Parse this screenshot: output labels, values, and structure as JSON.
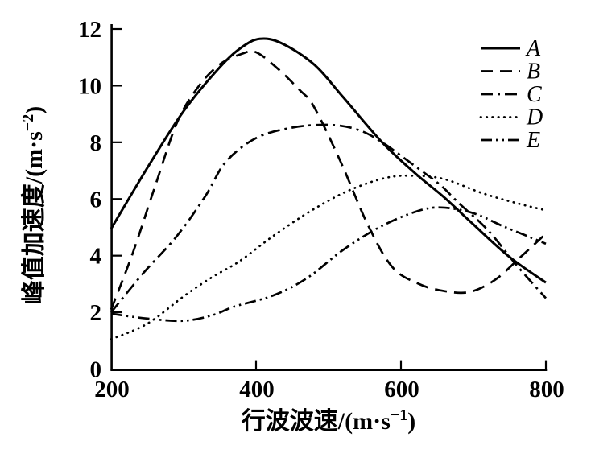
{
  "figure": {
    "background": "#ffffff",
    "line_color": "#000000"
  },
  "chart_data": {
    "type": "line",
    "title": "",
    "xlabel": {
      "main": "行波波速/(m·s",
      "sup": "−1",
      "close": ")"
    },
    "ylabel": {
      "main": "峰值加速度/(m·s",
      "sup": "−2",
      "close": ")"
    },
    "xlim": [
      200,
      800
    ],
    "ylim": [
      0,
      12
    ],
    "x_ticks": [
      200,
      400,
      600,
      800
    ],
    "y_ticks": [
      0,
      2,
      4,
      6,
      8,
      10,
      12
    ],
    "grid": false,
    "legend_position": "top-right",
    "series": [
      {
        "name": "A",
        "style": "solid",
        "points": [
          [
            200,
            4.95
          ],
          [
            250,
            7.1
          ],
          [
            300,
            9.1
          ],
          [
            350,
            10.65
          ],
          [
            380,
            11.35
          ],
          [
            405,
            11.65
          ],
          [
            435,
            11.5
          ],
          [
            480,
            10.75
          ],
          [
            520,
            9.6
          ],
          [
            574,
            8.0
          ],
          [
            620,
            6.9
          ],
          [
            660,
            6.05
          ],
          [
            700,
            5.1
          ],
          [
            750,
            3.95
          ],
          [
            800,
            3.05
          ]
        ]
      },
      {
        "name": "B",
        "style": "dashed",
        "points": [
          [
            200,
            2.1
          ],
          [
            230,
            4.1
          ],
          [
            260,
            6.4
          ],
          [
            291,
            8.7
          ],
          [
            320,
            9.95
          ],
          [
            350,
            10.75
          ],
          [
            380,
            11.12
          ],
          [
            400,
            11.18
          ],
          [
            430,
            10.6
          ],
          [
            460,
            9.85
          ],
          [
            480,
            9.25
          ],
          [
            517,
            7.3
          ],
          [
            554,
            5.1
          ],
          [
            588,
            3.6
          ],
          [
            625,
            3.0
          ],
          [
            660,
            2.75
          ],
          [
            695,
            2.72
          ],
          [
            730,
            3.15
          ],
          [
            765,
            3.95
          ],
          [
            800,
            4.78
          ]
        ]
      },
      {
        "name": "C",
        "style": "dashdot",
        "points": [
          [
            200,
            2.0
          ],
          [
            245,
            3.4
          ],
          [
            291,
            4.7
          ],
          [
            330,
            6.1
          ],
          [
            358,
            7.3
          ],
          [
            400,
            8.15
          ],
          [
            450,
            8.52
          ],
          [
            500,
            8.62
          ],
          [
            540,
            8.45
          ],
          [
            574,
            8.0
          ],
          [
            620,
            7.15
          ],
          [
            654,
            6.5
          ],
          [
            680,
            5.85
          ],
          [
            720,
            4.9
          ],
          [
            760,
            3.65
          ],
          [
            800,
            2.5
          ]
        ]
      },
      {
        "name": "D",
        "style": "dotted",
        "points": [
          [
            200,
            1.05
          ],
          [
            250,
            1.6
          ],
          [
            302,
            2.6
          ],
          [
            340,
            3.25
          ],
          [
            377,
            3.8
          ],
          [
            424,
            4.7
          ],
          [
            477,
            5.6
          ],
          [
            528,
            6.3
          ],
          [
            580,
            6.75
          ],
          [
            620,
            6.82
          ],
          [
            660,
            6.7
          ],
          [
            713,
            6.2
          ],
          [
            760,
            5.85
          ],
          [
            800,
            5.6
          ]
        ]
      },
      {
        "name": "E",
        "style": "dashdotdot",
        "points": [
          [
            200,
            1.95
          ],
          [
            250,
            1.78
          ],
          [
            300,
            1.7
          ],
          [
            340,
            1.9
          ],
          [
            370,
            2.2
          ],
          [
            424,
            2.6
          ],
          [
            470,
            3.2
          ],
          [
            520,
            4.2
          ],
          [
            570,
            5.0
          ],
          [
            620,
            5.55
          ],
          [
            655,
            5.7
          ],
          [
            700,
            5.5
          ],
          [
            740,
            5.05
          ],
          [
            783,
            4.6
          ],
          [
            800,
            4.42
          ]
        ]
      }
    ]
  }
}
